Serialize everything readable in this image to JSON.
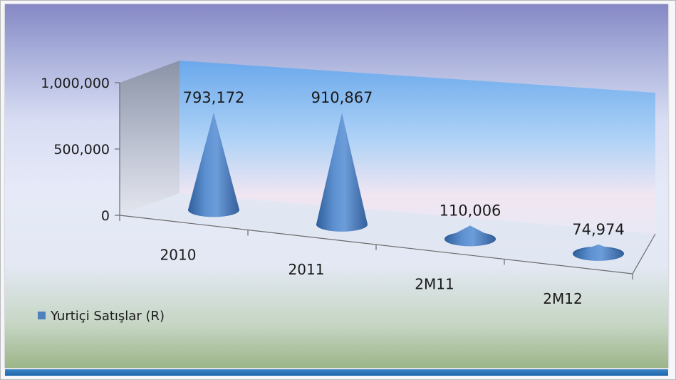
{
  "chart_data": {
    "type": "bar",
    "shape": "cone-3d",
    "title": "",
    "xlabel": "",
    "ylabel": "",
    "categories": [
      "2010",
      "2011",
      "2M11",
      "2M12"
    ],
    "series": [
      {
        "name": "Yurtiçi Satışlar (R)",
        "values": [
          793172,
          910867,
          110006,
          74974
        ],
        "color": "#4f81bd"
      }
    ],
    "data_labels": [
      "793,172",
      "910,867",
      "110,006",
      "74,974"
    ],
    "y_ticks": [
      0,
      500000,
      1000000
    ],
    "y_tick_labels": [
      "0",
      "500,000",
      "1,000,000"
    ],
    "ylim": [
      0,
      1000000
    ],
    "grid": false,
    "legend_position": "bottom-left"
  }
}
